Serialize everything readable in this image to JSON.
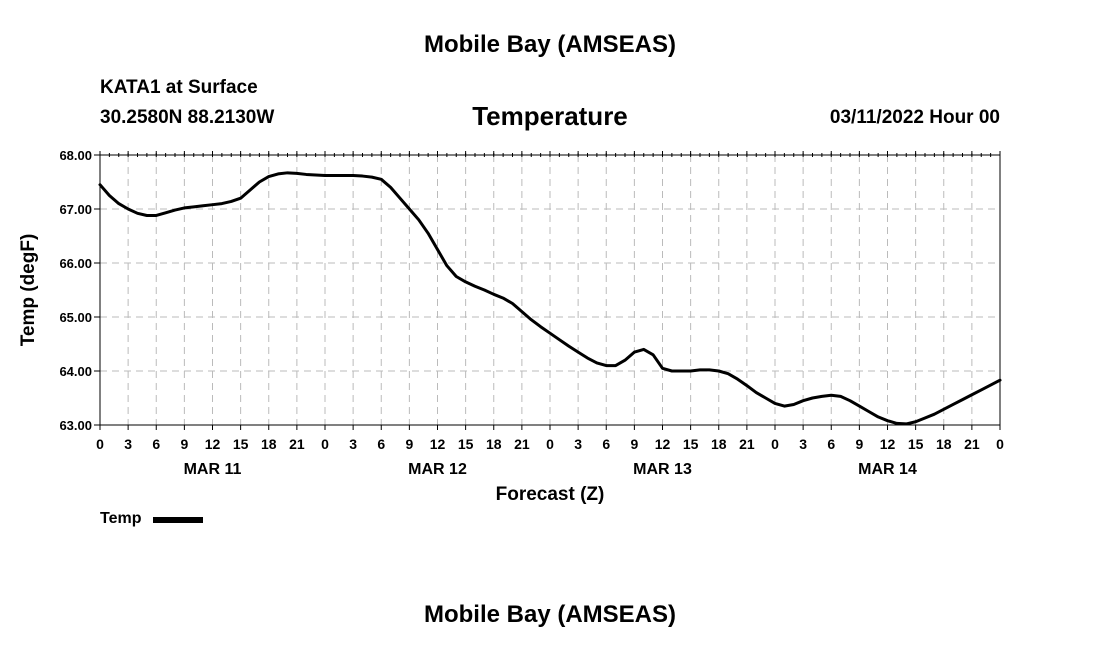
{
  "header": {
    "title": "Mobile Bay (AMSEAS)",
    "station": "KATA1 at Surface",
    "coordinates": "30.2580N  88.2130W",
    "variable": "Temperature",
    "run_time": "03/11/2022 Hour 00"
  },
  "footer": {
    "title": "Mobile Bay (AMSEAS)"
  },
  "chart_data": {
    "type": "line",
    "title": "Temperature",
    "xlabel": "Forecast (Z)",
    "ylabel": "Temp (degF)",
    "xlim": [
      0,
      96
    ],
    "ylim": [
      63.0,
      68.0
    ],
    "yticks": [
      63.0,
      64.0,
      65.0,
      66.0,
      67.0,
      68.0
    ],
    "ytick_labels": [
      "63.00",
      "64.00",
      "65.00",
      "66.00",
      "67.00",
      "68.00"
    ],
    "xticks": [
      0,
      3,
      6,
      9,
      12,
      15,
      18,
      21,
      24,
      27,
      30,
      33,
      36,
      39,
      42,
      45,
      48,
      51,
      54,
      57,
      60,
      63,
      66,
      69,
      72,
      75,
      78,
      81,
      84,
      87,
      90,
      93,
      96
    ],
    "xtick_labels": [
      "0",
      "3",
      "6",
      "9",
      "12",
      "15",
      "18",
      "21",
      "0",
      "3",
      "6",
      "9",
      "12",
      "15",
      "18",
      "21",
      "0",
      "3",
      "6",
      "9",
      "12",
      "15",
      "18",
      "21",
      "0",
      "3",
      "6",
      "9",
      "12",
      "15",
      "18",
      "21",
      "0"
    ],
    "day_labels": [
      {
        "hour": 12,
        "label": "MAR 11"
      },
      {
        "hour": 36,
        "label": "MAR 12"
      },
      {
        "hour": 60,
        "label": "MAR 13"
      },
      {
        "hour": 84,
        "label": "MAR 14"
      }
    ],
    "grid": true,
    "legend": [
      {
        "label": "Temp",
        "color": "#000000"
      }
    ],
    "series": [
      {
        "name": "Temp",
        "color": "#000000",
        "x": [
          0,
          1,
          2,
          3,
          4,
          5,
          6,
          7,
          8,
          9,
          10,
          11,
          12,
          13,
          14,
          15,
          16,
          17,
          18,
          19,
          20,
          21,
          22,
          23,
          24,
          25,
          26,
          27,
          28,
          29,
          30,
          31,
          32,
          33,
          34,
          35,
          36,
          37,
          38,
          39,
          40,
          41,
          42,
          43,
          44,
          45,
          46,
          47,
          48,
          49,
          50,
          51,
          52,
          53,
          54,
          55,
          56,
          57,
          58,
          59,
          60,
          61,
          62,
          63,
          64,
          65,
          66,
          67,
          68,
          69,
          70,
          71,
          72,
          73,
          74,
          75,
          76,
          77,
          78,
          79,
          80,
          81,
          82,
          83,
          84,
          85,
          86,
          87,
          88,
          89,
          90,
          91,
          92,
          93,
          94,
          95,
          96
        ],
        "values": [
          67.45,
          67.25,
          67.1,
          67.0,
          66.92,
          66.88,
          66.88,
          66.93,
          66.98,
          67.02,
          67.04,
          67.06,
          67.08,
          67.1,
          67.14,
          67.2,
          67.35,
          67.5,
          67.6,
          67.65,
          67.67,
          67.66,
          67.64,
          67.63,
          67.62,
          67.62,
          67.62,
          67.62,
          67.61,
          67.59,
          67.55,
          67.4,
          67.2,
          67.0,
          66.8,
          66.55,
          66.25,
          65.95,
          65.75,
          65.65,
          65.57,
          65.5,
          65.42,
          65.35,
          65.25,
          65.1,
          64.95,
          64.82,
          64.7,
          64.58,
          64.46,
          64.35,
          64.24,
          64.15,
          64.1,
          64.1,
          64.2,
          64.35,
          64.4,
          64.3,
          64.05,
          64.0,
          64.0,
          64.0,
          64.02,
          64.02,
          64.0,
          63.95,
          63.85,
          63.73,
          63.6,
          63.5,
          63.4,
          63.35,
          63.38,
          63.45,
          63.5,
          63.53,
          63.55,
          63.53,
          63.45,
          63.35,
          63.25,
          63.15,
          63.08,
          63.03,
          63.02,
          63.06,
          63.13,
          63.2,
          63.29,
          63.38,
          63.47,
          63.56,
          63.65,
          63.74,
          63.83
        ]
      }
    ]
  }
}
